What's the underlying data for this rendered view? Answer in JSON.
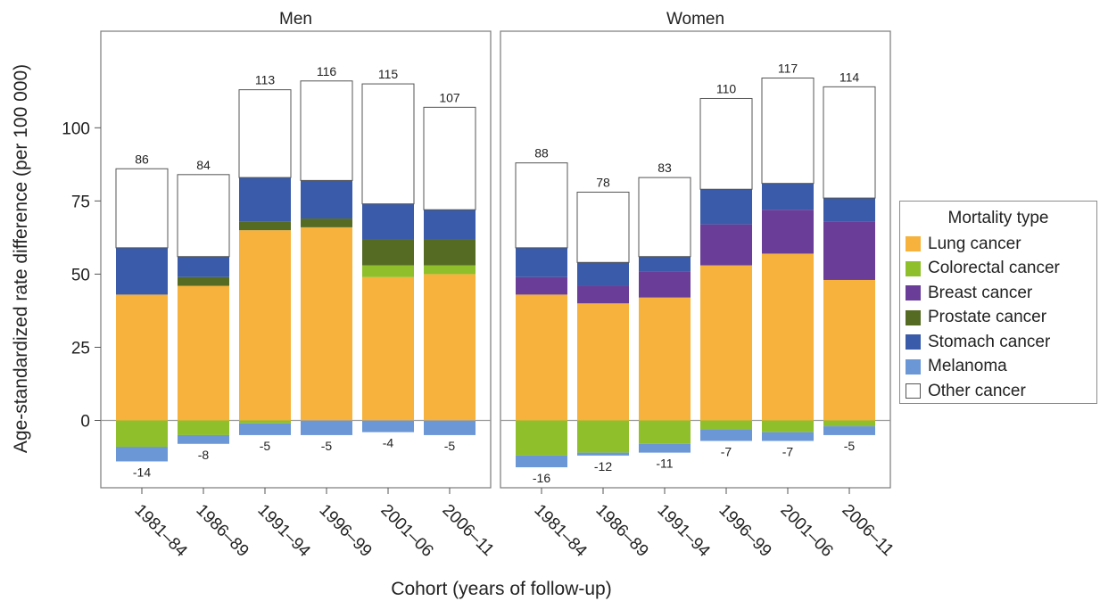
{
  "chart_data": {
    "type": "bar",
    "stacked": true,
    "xlabel": "Cohort (years of follow-up)",
    "ylabel": "Age-standardized rate difference (per 100 000)",
    "ylim": [
      -23,
      133
    ],
    "yticks": [
      0,
      25,
      50,
      75,
      100
    ],
    "grid": false,
    "legend_title": "Mortality type",
    "legend_position": "right",
    "categories": [
      "1981–84",
      "1986–89",
      "1991–94",
      "1996–99",
      "2001–06",
      "2006–11"
    ],
    "series_meta": [
      {
        "key": "lung",
        "name": "Lung cancer",
        "color": "#f6b23c"
      },
      {
        "key": "colorectal",
        "name": "Colorectal cancer",
        "color": "#8fbf2b"
      },
      {
        "key": "breast",
        "name": "Breast cancer",
        "color": "#6a3d98"
      },
      {
        "key": "prostate",
        "name": "Prostate cancer",
        "color": "#556b24"
      },
      {
        "key": "stomach",
        "name": "Stomach cancer",
        "color": "#3a5ba9"
      },
      {
        "key": "melanoma",
        "name": "Melanoma",
        "color": "#6b97d6"
      },
      {
        "key": "other",
        "name": "Other cancer",
        "color": "#ffffff"
      }
    ],
    "panels": [
      {
        "title": "Men",
        "totals": [
          86,
          84,
          113,
          116,
          115,
          107
        ],
        "negative_totals": [
          "-14",
          "-8",
          "-5",
          "-5",
          "-4",
          "-5"
        ],
        "series": {
          "lung": [
            43,
            46,
            65,
            66,
            49,
            50
          ],
          "colorectal": [
            -9,
            -5,
            -1,
            0,
            4,
            3
          ],
          "breast": [
            0,
            0,
            0,
            0,
            0,
            0
          ],
          "prostate": [
            0,
            3,
            3,
            3,
            9,
            9
          ],
          "stomach": [
            16,
            7,
            15,
            13,
            12,
            10
          ],
          "melanoma": [
            -5,
            -3,
            -4,
            -5,
            -4,
            -5
          ],
          "other": [
            27,
            28,
            30,
            34,
            41,
            35
          ]
        }
      },
      {
        "title": "Women",
        "totals": [
          88,
          78,
          83,
          110,
          117,
          114
        ],
        "negative_totals": [
          "-16",
          "-12",
          "-11",
          "-7",
          "-7",
          "-5"
        ],
        "series": {
          "lung": [
            43,
            40,
            42,
            53,
            57,
            48
          ],
          "colorectal": [
            -12,
            -11,
            -8,
            -3,
            -4,
            -2
          ],
          "breast": [
            6,
            6,
            9,
            14,
            15,
            20
          ],
          "prostate": [
            0,
            0,
            0,
            0,
            0,
            0
          ],
          "stomach": [
            10,
            8,
            5,
            12,
            9,
            8
          ],
          "melanoma": [
            -4,
            -1,
            -3,
            -4,
            -3,
            -3
          ],
          "other": [
            29,
            24,
            27,
            31,
            36,
            38
          ]
        }
      }
    ]
  }
}
